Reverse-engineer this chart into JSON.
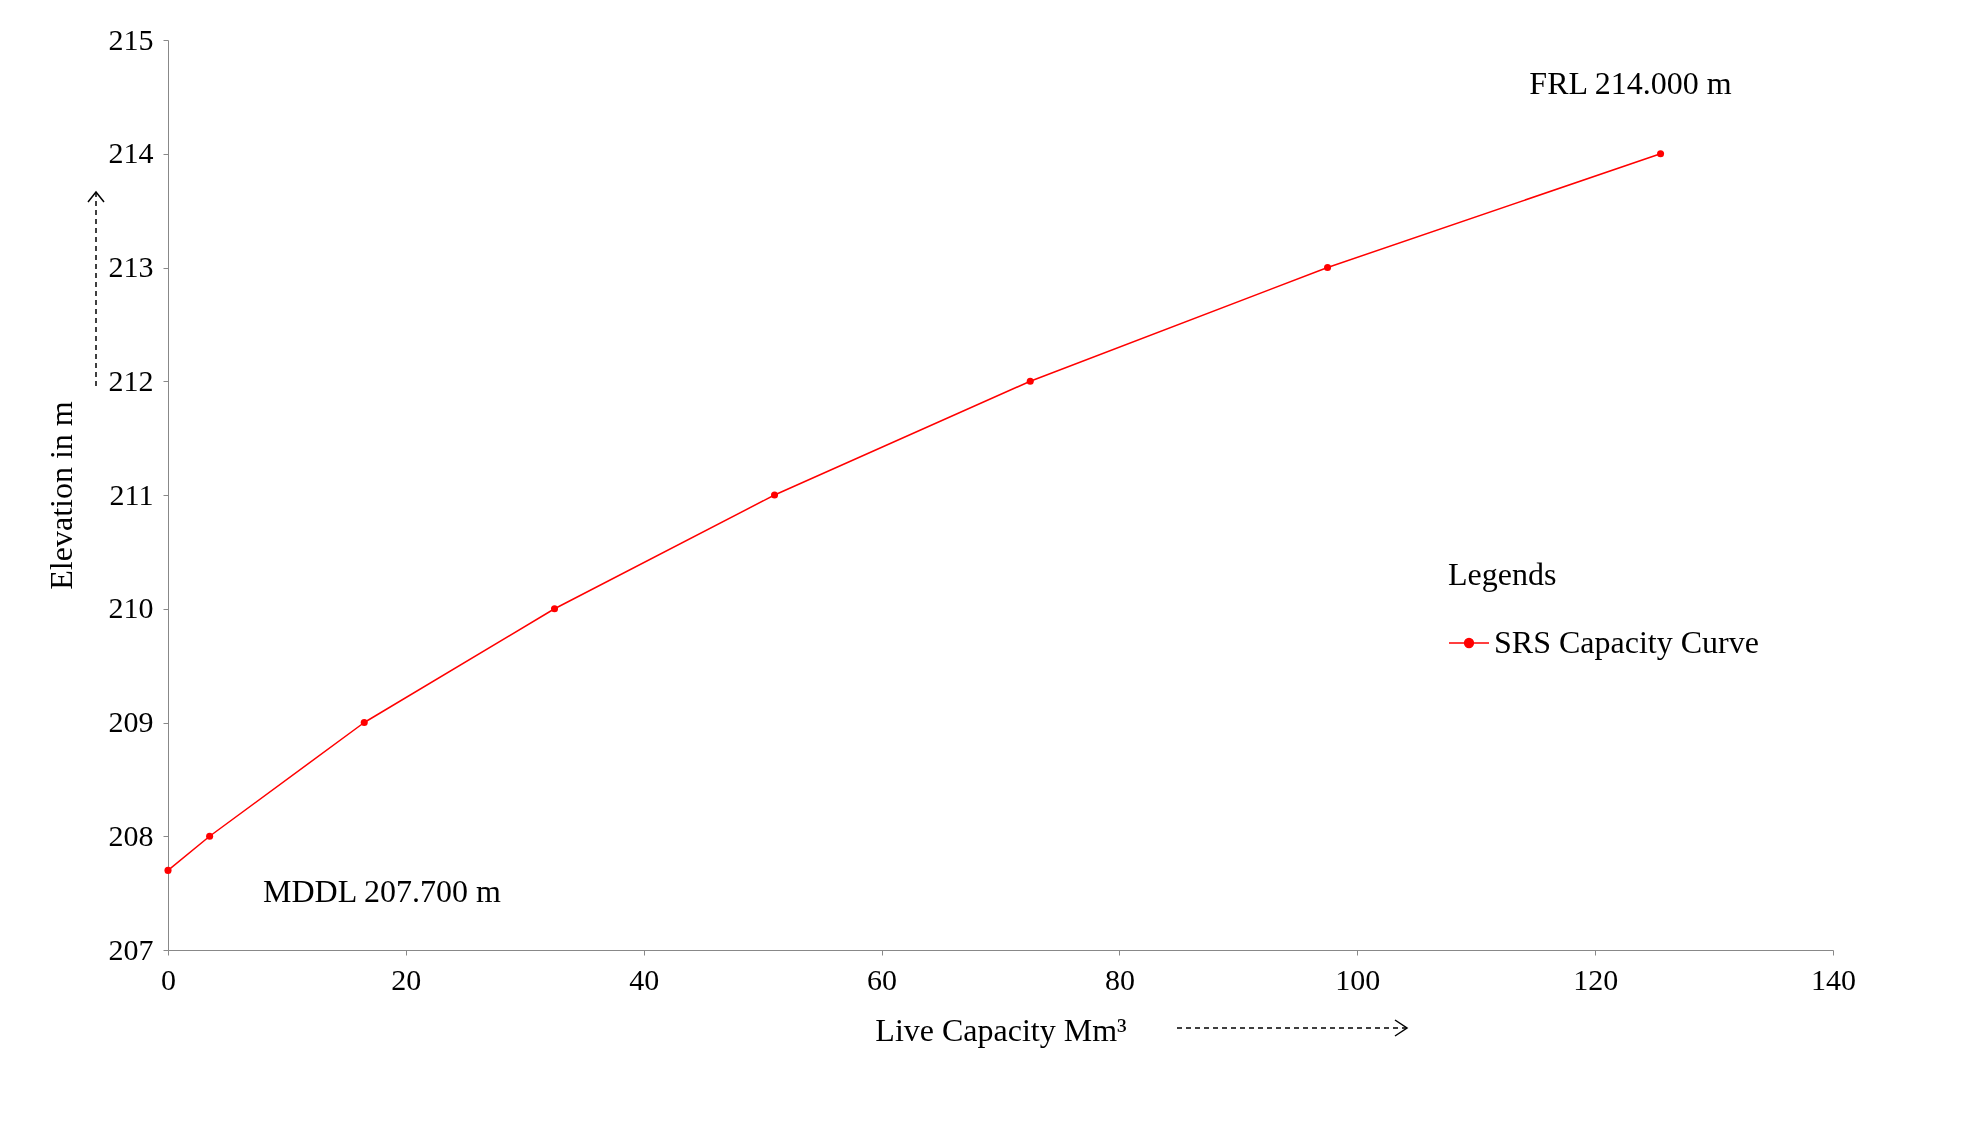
{
  "chart_data": {
    "type": "line",
    "xlabel": "Live Capacity Mm³",
    "ylabel": "Elevation in m",
    "legend_title": "Legends",
    "x": [
      0,
      3.5,
      16.5,
      32.5,
      51,
      72.5,
      97.5,
      125.5
    ],
    "series": [
      {
        "name": "SRS Capacity Curve",
        "color": "#ff0000",
        "values": [
          207.7,
          208,
          209,
          210,
          211,
          212,
          213,
          214
        ]
      }
    ],
    "xlim": [
      0,
      140
    ],
    "xticks": [
      0,
      20,
      40,
      60,
      80,
      100,
      120,
      140
    ],
    "ylim": [
      207,
      215
    ],
    "yticks": [
      207,
      208,
      209,
      210,
      211,
      212,
      213,
      214,
      215
    ],
    "grid": false,
    "legend": "right",
    "marker": "circle",
    "line_style": "solid",
    "annotations": [
      {
        "text": "FRL 214.000 m",
        "x": 125.5,
        "y": 214
      },
      {
        "text": "MDDL 207.700 m",
        "x": 0,
        "y": 207.7
      }
    ]
  }
}
